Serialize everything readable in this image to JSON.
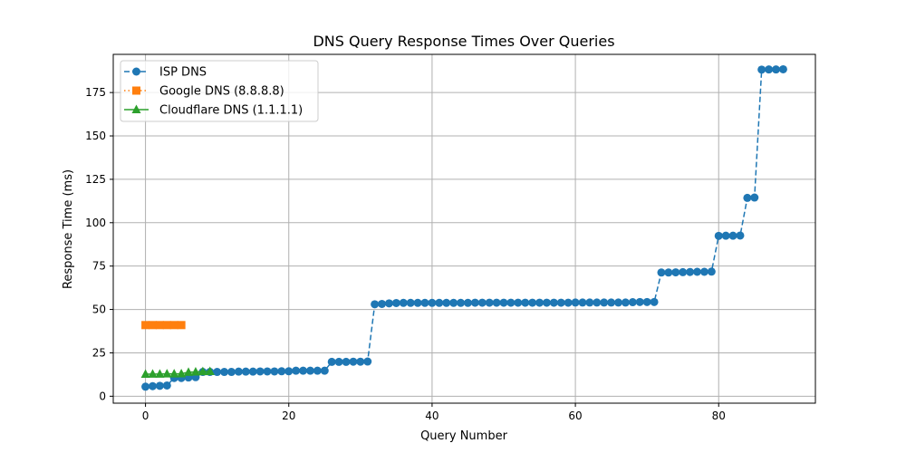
{
  "chart_data": {
    "type": "line",
    "title": "DNS Query Response Times Over Queries",
    "xlabel": "Query Number",
    "ylabel": "Response Time (ms)",
    "xlim": [
      -4.5,
      93.5
    ],
    "ylim": [
      -4,
      197
    ],
    "xticks": [
      0,
      20,
      40,
      60,
      80
    ],
    "yticks": [
      0,
      25,
      50,
      75,
      100,
      125,
      150,
      175
    ],
    "grid": true,
    "legend_position": "top-left",
    "series": [
      {
        "name": "ISP DNS",
        "color": "#1f77b4",
        "line_style": "dashed",
        "marker": "circle",
        "x": [
          0,
          1,
          2,
          3,
          4,
          5,
          6,
          7,
          8,
          9,
          10,
          11,
          12,
          13,
          14,
          15,
          16,
          17,
          18,
          19,
          20,
          21,
          22,
          23,
          24,
          25,
          26,
          27,
          28,
          29,
          30,
          31,
          32,
          33,
          34,
          35,
          36,
          37,
          38,
          39,
          40,
          41,
          42,
          43,
          44,
          45,
          46,
          47,
          48,
          49,
          50,
          51,
          52,
          53,
          54,
          55,
          56,
          57,
          58,
          59,
          60,
          61,
          62,
          63,
          64,
          65,
          66,
          67,
          68,
          69,
          70,
          71,
          72,
          73,
          74,
          75,
          76,
          77,
          78,
          79,
          80,
          81,
          82,
          83,
          84,
          85,
          86,
          87,
          88,
          89
        ],
        "values": [
          5.5,
          5.8,
          6,
          6.2,
          10.5,
          10.5,
          10.8,
          11,
          14,
          14,
          14,
          14,
          14,
          14.2,
          14.2,
          14.2,
          14.3,
          14.3,
          14.3,
          14.4,
          14.4,
          14.7,
          14.7,
          14.7,
          14.7,
          14.7,
          19.8,
          19.8,
          19.8,
          19.9,
          19.9,
          20,
          53,
          53.2,
          53.5,
          53.7,
          53.8,
          53.8,
          53.8,
          53.8,
          53.8,
          53.8,
          53.8,
          53.8,
          53.8,
          53.8,
          53.9,
          53.9,
          53.9,
          53.9,
          53.9,
          53.9,
          53.9,
          53.9,
          53.9,
          53.9,
          53.9,
          53.9,
          53.9,
          53.9,
          54,
          54,
          54,
          54,
          54,
          54,
          54,
          54,
          54.2,
          54.3,
          54.3,
          54.3,
          71.3,
          71.3,
          71.4,
          71.5,
          71.6,
          71.7,
          71.7,
          71.8,
          92.4,
          92.5,
          92.5,
          92.6,
          114.3,
          114.5,
          188.2,
          188.3,
          188.3,
          188.4
        ]
      },
      {
        "name": "Google DNS (8.8.8.8)",
        "color": "#ff7f0e",
        "line_style": "dotted",
        "marker": "square",
        "x": [
          0,
          1,
          2,
          3,
          4,
          5
        ],
        "values": [
          41,
          41,
          41,
          41,
          41,
          41
        ]
      },
      {
        "name": "Cloudflare DNS (1.1.1.1)",
        "color": "#2ca02c",
        "line_style": "solid",
        "marker": "triangle",
        "x": [
          0,
          1,
          2,
          3,
          4,
          5,
          6,
          7,
          8,
          9
        ],
        "values": [
          12.7,
          12.8,
          12.8,
          12.9,
          12.9,
          13,
          13.8,
          14,
          14.2,
          14.3
        ]
      }
    ]
  }
}
